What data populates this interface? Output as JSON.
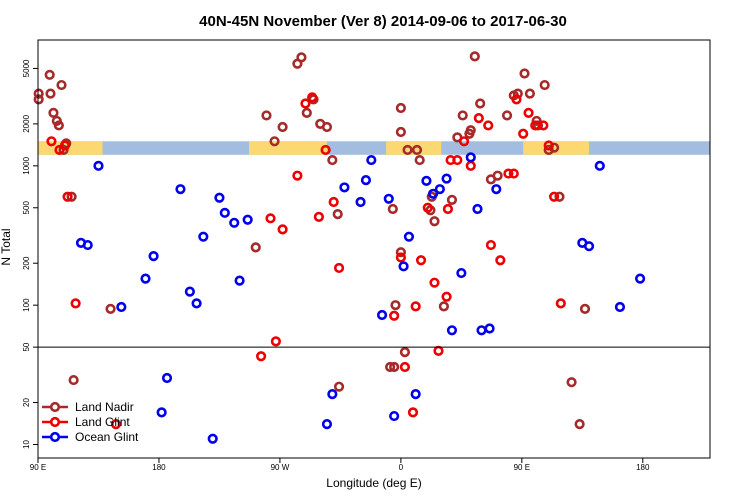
{
  "chart_data": {
    "type": "scatter",
    "title": "40N-45N November (Ver 8)   2014-09-06 to 2017-06-30",
    "xlabel": "Longitude (deg E)",
    "ylabel": "N Total",
    "x_scale": "linear",
    "y_scale": "log",
    "xlim": [
      90,
      590
    ],
    "ylim": [
      8,
      8000
    ],
    "x_ticks": [
      {
        "value": 90,
        "label": "90 E"
      },
      {
        "value": 180,
        "label": "180"
      },
      {
        "value": 270,
        "label": "90 W"
      },
      {
        "value": 360,
        "label": "0"
      },
      {
        "value": 450,
        "label": "90 E"
      },
      {
        "value": 540,
        "label": "180"
      }
    ],
    "y_ticks": [
      {
        "value": 10,
        "label": "10"
      },
      {
        "value": 20,
        "label": "20"
      },
      {
        "value": 50,
        "label": "50"
      },
      {
        "value": 100,
        "label": "100"
      },
      {
        "value": 200,
        "label": "200"
      },
      {
        "value": 500,
        "label": "500"
      },
      {
        "value": 1000,
        "label": "1000"
      },
      {
        "value": 2000,
        "label": "2000"
      },
      {
        "value": 5000,
        "label": "5000"
      }
    ],
    "reference_line_y": 50,
    "grid": false,
    "legend_position": "bottom-left",
    "land_mask_band": {
      "y_range": [
        1200,
        1500
      ],
      "ocean_color": "#a3bde0",
      "land_color": "#fcd872",
      "land_segments": [
        [
          90,
          138
        ],
        [
          247,
          305
        ],
        [
          349,
          390
        ],
        [
          451,
          500
        ]
      ]
    },
    "series": [
      {
        "name": "Land Nadir",
        "color": "#a52a2a",
        "points": [
          [
            90.5,
            3300
          ],
          [
            90.5,
            3000
          ],
          [
            99.3,
            3300
          ],
          [
            98.7,
            4500
          ],
          [
            107.5,
            3800
          ],
          [
            101.5,
            2400
          ],
          [
            104,
            2100
          ],
          [
            105.5,
            1950
          ],
          [
            109,
            1300
          ],
          [
            115,
            600
          ],
          [
            111,
            1450
          ],
          [
            116.5,
            29
          ],
          [
            144,
            94
          ],
          [
            260,
            2300
          ],
          [
            272,
            1900
          ],
          [
            266,
            1500
          ],
          [
            283,
            5400
          ],
          [
            286,
            6000
          ],
          [
            252,
            260
          ],
          [
            290,
            2400
          ],
          [
            295,
            3000
          ],
          [
            300,
            2000
          ],
          [
            305,
            1900
          ],
          [
            309,
            1100
          ],
          [
            313,
            450
          ],
          [
            314,
            26
          ],
          [
            360,
            2600
          ],
          [
            372,
            1300
          ],
          [
            374,
            1100
          ],
          [
            382,
            480
          ],
          [
            385,
            400
          ],
          [
            392,
            98
          ],
          [
            398,
            570
          ],
          [
            402,
            1600
          ],
          [
            406,
            2300
          ],
          [
            411,
            1700
          ],
          [
            415,
            6100
          ],
          [
            419,
            2800
          ],
          [
            427,
            800
          ],
          [
            432,
            850
          ],
          [
            439,
            2300
          ],
          [
            444,
            3200
          ],
          [
            447,
            3300
          ],
          [
            452,
            4600
          ],
          [
            456,
            3300
          ],
          [
            461,
            2100
          ],
          [
            467,
            3800
          ],
          [
            470,
            1300
          ],
          [
            474,
            1350
          ],
          [
            478,
            600
          ],
          [
            487,
            28
          ],
          [
            493,
            14
          ],
          [
            497,
            94
          ],
          [
            412,
            1800
          ],
          [
            383,
            600
          ],
          [
            365,
            1300
          ],
          [
            360,
            1750
          ],
          [
            462,
            1950
          ],
          [
            360,
            240
          ],
          [
            354,
            490
          ],
          [
            352,
            36
          ],
          [
            355,
            36
          ],
          [
            363,
            46
          ],
          [
            356,
            100
          ]
        ]
      },
      {
        "name": "Land Glint",
        "color": "#ee0000",
        "points": [
          [
            100,
            1500
          ],
          [
            106,
            1300
          ],
          [
            110,
            1400
          ],
          [
            112,
            600
          ],
          [
            118,
            103
          ],
          [
            148,
            14
          ],
          [
            256,
            43
          ],
          [
            263,
            420
          ],
          [
            267,
            55
          ],
          [
            272,
            350
          ],
          [
            283,
            850
          ],
          [
            289,
            2800
          ],
          [
            294,
            3100
          ],
          [
            299,
            430
          ],
          [
            304,
            1300
          ],
          [
            310,
            550
          ],
          [
            314,
            185
          ],
          [
            355,
            84
          ],
          [
            360,
            220
          ],
          [
            363,
            36
          ],
          [
            369,
            17
          ],
          [
            371,
            98
          ],
          [
            375,
            210
          ],
          [
            380,
            500
          ],
          [
            385,
            145
          ],
          [
            388,
            47
          ],
          [
            394,
            115
          ],
          [
            397,
            1100
          ],
          [
            402,
            1100
          ],
          [
            407,
            1500
          ],
          [
            412,
            1000
          ],
          [
            418,
            2200
          ],
          [
            425,
            1950
          ],
          [
            427,
            270
          ],
          [
            434,
            210
          ],
          [
            440,
            880
          ],
          [
            444,
            880
          ],
          [
            446,
            3000
          ],
          [
            451,
            1700
          ],
          [
            455,
            2400
          ],
          [
            460,
            1950
          ],
          [
            466,
            1950
          ],
          [
            470,
            1400
          ],
          [
            474,
            600
          ],
          [
            479,
            103
          ],
          [
            395,
            490
          ]
        ]
      },
      {
        "name": "Ocean Glint",
        "color": "#0000ee",
        "points": [
          [
            122,
            280
          ],
          [
            127,
            270
          ],
          [
            135,
            1000
          ],
          [
            152,
            97
          ],
          [
            170,
            155
          ],
          [
            176,
            225
          ],
          [
            182,
            17
          ],
          [
            186,
            30
          ],
          [
            196,
            680
          ],
          [
            203,
            125
          ],
          [
            208,
            103
          ],
          [
            213,
            310
          ],
          [
            220,
            11
          ],
          [
            225,
            590
          ],
          [
            229,
            460
          ],
          [
            236,
            390
          ],
          [
            240,
            150
          ],
          [
            246,
            410
          ],
          [
            305,
            14
          ],
          [
            309,
            23
          ],
          [
            318,
            700
          ],
          [
            330,
            550
          ],
          [
            334,
            790
          ],
          [
            338,
            1100
          ],
          [
            346,
            85
          ],
          [
            351,
            580
          ],
          [
            355,
            16
          ],
          [
            362,
            190
          ],
          [
            366,
            310
          ],
          [
            371,
            23
          ],
          [
            379,
            780
          ],
          [
            384,
            630
          ],
          [
            389,
            680
          ],
          [
            394,
            810
          ],
          [
            398,
            66
          ],
          [
            405,
            170
          ],
          [
            412,
            1150
          ],
          [
            417,
            490
          ],
          [
            420,
            66
          ],
          [
            426,
            68
          ],
          [
            431,
            680
          ],
          [
            495,
            280
          ],
          [
            500,
            265
          ],
          [
            508,
            1000
          ],
          [
            523,
            97
          ],
          [
            538,
            155
          ]
        ]
      }
    ]
  }
}
